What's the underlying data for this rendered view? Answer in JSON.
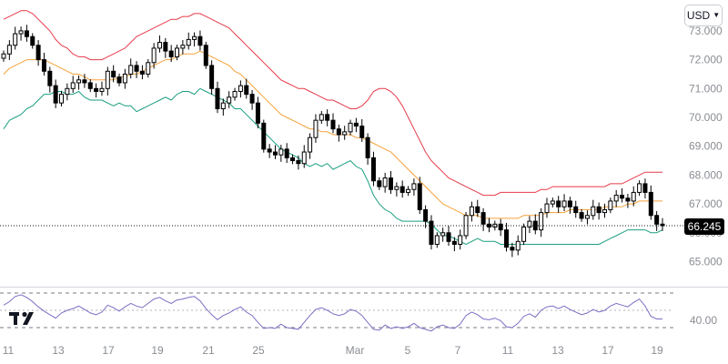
{
  "currency_selector": {
    "label": "USD"
  },
  "last_price_label": "66.245",
  "colors": {
    "candle": "#000000",
    "upper_band": "#e63b4a",
    "middle_band": "#f5a23a",
    "lower_band": "#1a9e81",
    "rsi_line": "#7e6cc4",
    "axis_text": "#8a8d93"
  },
  "chart_data": [
    {
      "type": "candlestick",
      "overlay": "bollinger_bands",
      "title": "",
      "ylim": [
        64.7,
        73.3
      ],
      "yticks": [
        "73.000",
        "72.000",
        "71.000",
        "70.000",
        "69.000",
        "68.000",
        "67.000",
        "66.000",
        "65.000"
      ],
      "x_tick_labels": [
        "11",
        "13",
        "17",
        "19",
        "21",
        "25",
        "Mar",
        "5",
        "7",
        "11",
        "13",
        "17",
        "19"
      ],
      "last_price": 66.245,
      "grid": false,
      "closes": [
        72.2,
        72.5,
        72.9,
        73.0,
        72.8,
        72.5,
        72.0,
        71.6,
        71.1,
        70.5,
        70.8,
        71.0,
        71.2,
        71.3,
        71.2,
        71.0,
        70.9,
        71.0,
        71.6,
        71.4,
        71.2,
        71.5,
        71.8,
        71.6,
        71.5,
        71.9,
        72.4,
        72.6,
        72.3,
        72.1,
        72.4,
        72.5,
        72.7,
        72.8,
        72.5,
        71.8,
        71.0,
        70.3,
        70.5,
        70.7,
        70.9,
        71.1,
        70.8,
        70.5,
        69.8,
        68.9,
        68.8,
        68.7,
        68.9,
        68.6,
        68.5,
        68.4,
        68.8,
        69.3,
        69.9,
        70.1,
        69.9,
        69.6,
        69.4,
        69.5,
        69.8,
        69.7,
        69.3,
        68.6,
        67.8,
        67.6,
        67.9,
        67.5,
        67.6,
        67.4,
        67.5,
        67.7,
        66.8,
        66.4,
        65.6,
        65.9,
        66.0,
        65.7,
        65.6,
        65.9,
        66.6,
        66.9,
        66.7,
        66.3,
        66.2,
        66.3,
        66.1,
        65.5,
        65.4,
        65.7,
        66.2,
        66.4,
        66.1,
        66.7,
        67.0,
        67.1,
        66.9,
        67.1,
        66.9,
        66.7,
        66.5,
        66.6,
        66.9,
        66.7,
        66.8,
        67.1,
        67.3,
        67.2,
        67.1,
        67.4,
        67.7,
        67.4,
        66.6,
        66.3,
        66.245
      ],
      "upper_band": [
        73.4,
        73.5,
        73.6,
        73.7,
        73.7,
        73.6,
        73.4,
        73.2,
        73.0,
        72.7,
        72.5,
        72.4,
        72.2,
        72.1,
        72.1,
        72.0,
        72.0,
        72.0,
        72.1,
        72.2,
        72.3,
        72.4,
        72.6,
        72.8,
        72.9,
        73.0,
        73.1,
        73.2,
        73.3,
        73.4,
        73.4,
        73.5,
        73.5,
        73.6,
        73.6,
        73.5,
        73.4,
        73.3,
        73.2,
        73.1,
        72.9,
        72.7,
        72.5,
        72.3,
        72.1,
        71.9,
        71.7,
        71.5,
        71.3,
        71.2,
        71.1,
        71.0,
        71.0,
        70.9,
        70.8,
        70.7,
        70.6,
        70.6,
        70.5,
        70.4,
        70.3,
        70.3,
        70.4,
        70.6,
        70.9,
        71.0,
        71.0,
        70.9,
        70.7,
        70.4,
        70.0,
        69.6,
        69.2,
        68.8,
        68.5,
        68.3,
        68.1,
        67.9,
        67.8,
        67.7,
        67.6,
        67.5,
        67.4,
        67.3,
        67.3,
        67.3,
        67.4,
        67.4,
        67.4,
        67.4,
        67.4,
        67.4,
        67.4,
        67.5,
        67.5,
        67.6,
        67.6,
        67.6,
        67.6,
        67.6,
        67.6,
        67.6,
        67.6,
        67.6,
        67.6,
        67.7,
        67.7,
        67.7,
        67.8,
        67.9,
        68.0,
        68.1,
        68.1,
        68.1,
        68.1
      ],
      "middle_band": [
        71.5,
        71.7,
        71.8,
        71.9,
        72.0,
        72.0,
        72.0,
        72.0,
        71.9,
        71.8,
        71.7,
        71.6,
        71.5,
        71.5,
        71.4,
        71.3,
        71.3,
        71.3,
        71.3,
        71.3,
        71.4,
        71.4,
        71.5,
        71.5,
        71.6,
        71.7,
        71.8,
        71.9,
        72.0,
        72.0,
        72.1,
        72.2,
        72.2,
        72.2,
        72.3,
        72.2,
        72.1,
        72.0,
        71.9,
        71.8,
        71.6,
        71.5,
        71.3,
        71.1,
        70.9,
        70.7,
        70.5,
        70.3,
        70.1,
        70.0,
        69.9,
        69.8,
        69.7,
        69.6,
        69.6,
        69.5,
        69.5,
        69.4,
        69.4,
        69.4,
        69.4,
        69.3,
        69.3,
        69.2,
        69.1,
        69.0,
        68.9,
        68.8,
        68.6,
        68.4,
        68.2,
        68.0,
        67.8,
        67.6,
        67.4,
        67.2,
        67.0,
        66.9,
        66.8,
        66.7,
        66.6,
        66.6,
        66.6,
        66.5,
        66.5,
        66.5,
        66.5,
        66.5,
        66.5,
        66.5,
        66.6,
        66.6,
        66.6,
        66.6,
        66.7,
        66.7,
        66.7,
        66.7,
        66.8,
        66.8,
        66.8,
        66.8,
        66.8,
        66.8,
        66.9,
        66.9,
        66.9,
        66.9,
        67.0,
        67.0,
        67.1,
        67.1,
        67.1,
        67.1,
        67.1
      ],
      "lower_band": [
        69.6,
        69.9,
        70.0,
        70.1,
        70.3,
        70.4,
        70.6,
        70.8,
        70.8,
        70.9,
        70.9,
        70.8,
        70.8,
        70.9,
        70.7,
        70.6,
        70.6,
        70.6,
        70.5,
        70.4,
        70.5,
        70.4,
        70.4,
        70.2,
        70.3,
        70.4,
        70.5,
        70.6,
        70.7,
        70.6,
        70.8,
        70.9,
        70.9,
        70.8,
        71.0,
        70.9,
        70.8,
        70.7,
        70.6,
        70.5,
        70.3,
        70.3,
        70.1,
        69.9,
        69.7,
        69.5,
        69.3,
        69.1,
        68.9,
        68.8,
        68.7,
        68.6,
        68.4,
        68.3,
        68.4,
        68.3,
        68.4,
        68.2,
        68.3,
        68.4,
        68.5,
        68.3,
        68.2,
        67.8,
        67.3,
        67.0,
        66.8,
        66.7,
        66.5,
        66.4,
        66.4,
        66.4,
        66.4,
        66.4,
        66.3,
        66.1,
        65.9,
        65.9,
        65.8,
        65.7,
        65.6,
        65.7,
        65.8,
        65.7,
        65.7,
        65.7,
        65.6,
        65.6,
        65.6,
        65.6,
        65.6,
        65.6,
        65.6,
        65.6,
        65.6,
        65.6,
        65.6,
        65.6,
        65.6,
        65.6,
        65.6,
        65.6,
        65.6,
        65.6,
        65.7,
        65.8,
        65.9,
        66.0,
        66.1,
        66.1,
        66.1,
        66.1,
        66.0,
        66.0,
        66.1
      ]
    },
    {
      "type": "line",
      "indicator": "RSI",
      "title": "",
      "ylim": [
        25,
        75
      ],
      "yticks": [
        "40.00"
      ],
      "levels": [
        70,
        30
      ],
      "values": [
        56,
        60,
        66,
        68,
        65,
        60,
        54,
        49,
        45,
        41,
        47,
        50,
        52,
        55,
        51,
        47,
        45,
        48,
        56,
        53,
        49,
        54,
        58,
        55,
        53,
        58,
        63,
        65,
        61,
        58,
        62,
        63,
        65,
        66,
        61,
        52,
        45,
        39,
        44,
        47,
        51,
        54,
        48,
        44,
        36,
        29,
        30,
        29,
        34,
        30,
        29,
        28,
        36,
        44,
        51,
        53,
        50,
        46,
        44,
        46,
        51,
        49,
        44,
        36,
        28,
        27,
        33,
        29,
        31,
        29,
        31,
        35,
        30,
        28,
        26,
        31,
        33,
        30,
        29,
        34,
        44,
        48,
        45,
        40,
        39,
        41,
        38,
        31,
        30,
        35,
        43,
        46,
        42,
        50,
        54,
        55,
        52,
        55,
        51,
        48,
        45,
        47,
        51,
        48,
        50,
        55,
        58,
        56,
        54,
        59,
        63,
        55,
        43,
        40,
        40
      ]
    }
  ]
}
